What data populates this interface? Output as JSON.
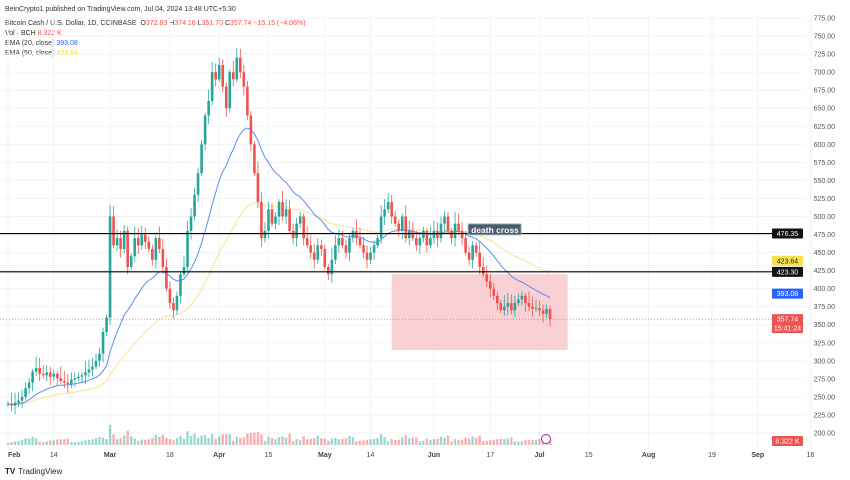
{
  "publisher": "BeinCrypto1 published on TradingView.com, Jul 04, 2024 13:48 UTC+5:30",
  "legend": {
    "symbol": "Bitcoin Cash / U.S. Dollar, 1D, COINBASE",
    "o_label": "O",
    "o": "372.83",
    "h_label": "H",
    "h": "374.16",
    "l_label": "L",
    "l": "351.70",
    "c_label": "C",
    "c": "357.74",
    "change": "−15.15 (−4.06%)",
    "vol_label": "Vol · BCH",
    "vol": "8.322 K",
    "ema20_label": "EMA (20, close)",
    "ema20": "393.08",
    "ema50_label": "EMA (50, close)",
    "ema50": "423.64"
  },
  "brand": "TradingView",
  "colors": {
    "up": "#26a69a",
    "down": "#ef5350",
    "ema20": "#5b8def",
    "ema50": "#f9e79f",
    "zone": "#f8c8cc",
    "level": "#000000"
  },
  "chart_data": {
    "type": "candlestick",
    "start_date": "2024-02-01",
    "closes": [
      240,
      238,
      242,
      245,
      250,
      262,
      270,
      285,
      290,
      282,
      280,
      284,
      278,
      282,
      276,
      272,
      270,
      268,
      274,
      276,
      278,
      280,
      284,
      288,
      292,
      300,
      310,
      340,
      360,
      500,
      460,
      470,
      455,
      480,
      430,
      445,
      470,
      460,
      475,
      465,
      455,
      440,
      470,
      455,
      430,
      400,
      380,
      370,
      390,
      420,
      430,
      480,
      500,
      530,
      560,
      600,
      640,
      660,
      700,
      690,
      710,
      680,
      650,
      700,
      690,
      720,
      700,
      680,
      640,
      600,
      560,
      520,
      470,
      480,
      510,
      490,
      500,
      520,
      500,
      510,
      480,
      470,
      490,
      500,
      470,
      460,
      450,
      440,
      460,
      455,
      430,
      420,
      440,
      460,
      470,
      460,
      450,
      470,
      480,
      470,
      460,
      450,
      440,
      450,
      460,
      470,
      500,
      510,
      520,
      500,
      490,
      480,
      500,
      470,
      480,
      470,
      460,
      470,
      480,
      460,
      470,
      480,
      470,
      490,
      500,
      480,
      470,
      490,
      480,
      470,
      450,
      440,
      460,
      450,
      430,
      420,
      410,
      400,
      390,
      380,
      370,
      375,
      380,
      370,
      380,
      385,
      390,
      380,
      375,
      372,
      373,
      370,
      365,
      372,
      357.74
    ],
    "ylim": [
      200,
      775
    ],
    "y_ticks": [
      "775.00",
      "750.00",
      "725.00",
      "700.00",
      "675.00",
      "650.00",
      "625.00",
      "600.00",
      "575.00",
      "550.00",
      "525.00",
      "500.00",
      "475.00",
      "450.00",
      "425.00",
      "400.00",
      "375.00",
      "350.00",
      "325.00",
      "300.00",
      "275.00",
      "250.00",
      "225.00",
      "200.00"
    ],
    "x_ticks": [
      {
        "label": "Feb",
        "day": 0,
        "bold": true
      },
      {
        "label": "14",
        "day": 13
      },
      {
        "label": "Mar",
        "day": 29,
        "bold": true
      },
      {
        "label": "18",
        "day": 46
      },
      {
        "label": "Apr",
        "day": 60,
        "bold": true
      },
      {
        "label": "15",
        "day": 74
      },
      {
        "label": "May",
        "day": 90,
        "bold": true
      },
      {
        "label": "14",
        "day": 103
      },
      {
        "label": "Jun",
        "day": 121,
        "bold": true
      },
      {
        "label": "17",
        "day": 137
      },
      {
        "label": "Jul",
        "day": 151,
        "bold": true
      },
      {
        "label": "15",
        "day": 165
      },
      {
        "label": "Aug",
        "day": 182,
        "bold": true
      },
      {
        "label": "19",
        "day": 200
      },
      {
        "label": "Sep",
        "day": 213,
        "bold": true
      },
      {
        "label": "16",
        "day": 228
      }
    ],
    "levels": [
      {
        "value": 476.35,
        "label": "476.35"
      },
      {
        "value": 423.3,
        "label": "423.30"
      }
    ],
    "price_labels": {
      "ema50": "423.64",
      "ema20": "393.08",
      "last": "357.74",
      "countdown": "15:41:24",
      "volume": "8.322 K"
    },
    "annotation": {
      "text": "death cross",
      "day": 131,
      "value": 480
    },
    "zone": {
      "from_day": 109,
      "to_day": 159,
      "top": 420,
      "bottom": 315
    },
    "ema_periods": [
      20,
      50
    ]
  }
}
